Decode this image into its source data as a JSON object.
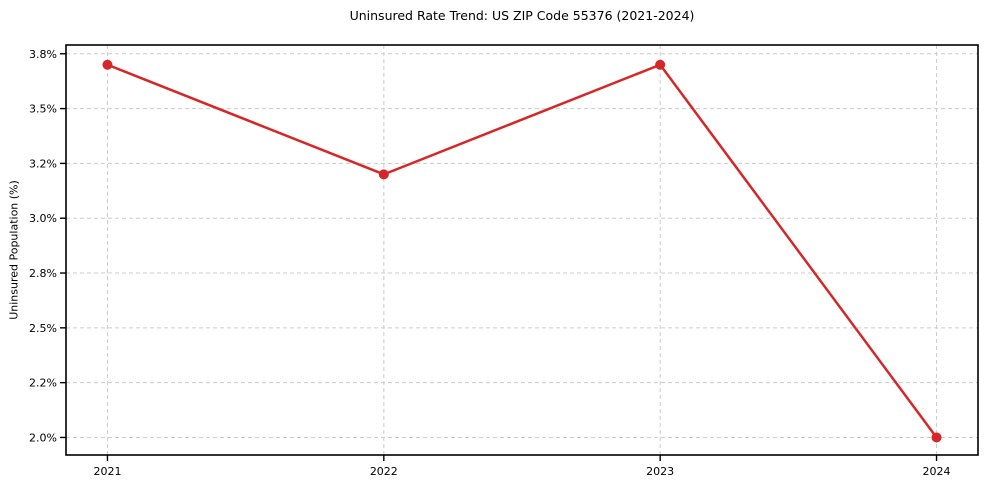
{
  "chart_data": {
    "type": "line",
    "title": "Uninsured Rate Trend: US ZIP Code 55376 (2021-2024)",
    "xlabel": "",
    "ylabel": "Uninsured Population (%)",
    "x": [
      "2021",
      "2022",
      "2023",
      "2024"
    ],
    "series": [
      {
        "name": "Uninsured rate",
        "values": [
          3.7,
          3.2,
          3.7,
          2.0
        ]
      }
    ],
    "xlim": [
      2020.85,
      2024.15
    ],
    "ylim": [
      1.92,
      3.79
    ],
    "yticks": [
      {
        "value": 2.0,
        "label": "2.0%"
      },
      {
        "value": 2.25,
        "label": "2.2%"
      },
      {
        "value": 2.5,
        "label": "2.5%"
      },
      {
        "value": 2.75,
        "label": "2.8%"
      },
      {
        "value": 3.0,
        "label": "3.0%"
      },
      {
        "value": 3.25,
        "label": "3.2%"
      },
      {
        "value": 3.5,
        "label": "3.5%"
      },
      {
        "value": 3.75,
        "label": "3.8%"
      }
    ],
    "grid": true,
    "grid_style": "dashed",
    "legend": "none",
    "colors": {
      "line": "#d62728",
      "marker": "#d62728",
      "grid": "#cccccc",
      "spine": "#000000",
      "text": "#000000",
      "background": "#ffffff"
    }
  }
}
